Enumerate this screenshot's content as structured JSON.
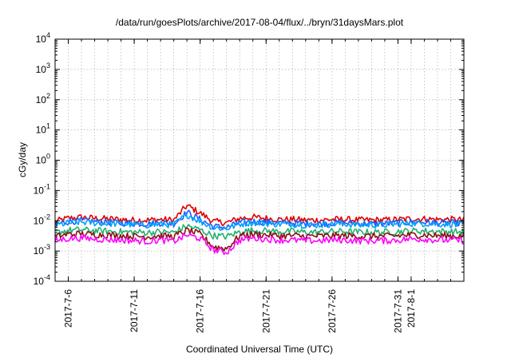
{
  "chart_data": {
    "type": "line",
    "title": "/data/run/goesPlots/archive/2017-08-04/flux/../bryn/31daysMars.plot",
    "xlabel": "Coordinated Universal Time (UTC)",
    "ylabel": "cGy/day",
    "yscale": "log",
    "ylim": [
      0.0001,
      10000
    ],
    "xlim": [
      "2017-07-05",
      "2017-08-05"
    ],
    "grid": true,
    "xticks": [
      "2017-7-6",
      "2017-7-11",
      "2017-7-16",
      "2017-7-21",
      "2017-7-26",
      "2017-7-31",
      "2017-8-1"
    ],
    "yticks": [
      {
        "value": 0.0001,
        "base": "10",
        "exp": "-4"
      },
      {
        "value": 0.001,
        "base": "10",
        "exp": "-3"
      },
      {
        "value": 0.01,
        "base": "10",
        "exp": "-2"
      },
      {
        "value": 0.1,
        "base": "10",
        "exp": "-1"
      },
      {
        "value": 1,
        "base": "10",
        "exp": "0"
      },
      {
        "value": 10,
        "base": "10",
        "exp": "1"
      },
      {
        "value": 100,
        "base": "10",
        "exp": "2"
      },
      {
        "value": 1000,
        "base": "10",
        "exp": "3"
      },
      {
        "value": 10000,
        "base": "10",
        "exp": "4"
      }
    ],
    "x": [
      "2017-07-05",
      "2017-07-06",
      "2017-07-07",
      "2017-07-08",
      "2017-07-09",
      "2017-07-10",
      "2017-07-11",
      "2017-07-12",
      "2017-07-13",
      "2017-07-14",
      "2017-07-15",
      "2017-07-16",
      "2017-07-17",
      "2017-07-18",
      "2017-07-19",
      "2017-07-20",
      "2017-07-21",
      "2017-07-22",
      "2017-07-23",
      "2017-07-24",
      "2017-07-25",
      "2017-07-26",
      "2017-07-27",
      "2017-07-28",
      "2017-07-29",
      "2017-07-30",
      "2017-07-31",
      "2017-08-01",
      "2017-08-02",
      "2017-08-03",
      "2017-08-04",
      "2017-08-05"
    ],
    "series": [
      {
        "color": "#e00000",
        "values": [
          0.0095,
          0.012,
          0.013,
          0.012,
          0.0115,
          0.011,
          0.0105,
          0.0105,
          0.011,
          0.0105,
          0.032,
          0.018,
          0.0095,
          0.0085,
          0.012,
          0.013,
          0.012,
          0.011,
          0.011,
          0.0105,
          0.0105,
          0.011,
          0.011,
          0.0105,
          0.0105,
          0.0105,
          0.011,
          0.0115,
          0.0115,
          0.011,
          0.011,
          0.0105
        ]
      },
      {
        "color": "#1e5cff",
        "values": [
          0.0075,
          0.0095,
          0.01,
          0.0095,
          0.009,
          0.0085,
          0.0082,
          0.008,
          0.0085,
          0.008,
          0.019,
          0.011,
          0.0065,
          0.006,
          0.0085,
          0.0095,
          0.009,
          0.0085,
          0.0085,
          0.008,
          0.008,
          0.0085,
          0.0085,
          0.008,
          0.008,
          0.008,
          0.0085,
          0.009,
          0.009,
          0.0085,
          0.0085,
          0.008
        ]
      },
      {
        "color": "#00a0ff",
        "values": [
          0.0068,
          0.0085,
          0.009,
          0.0085,
          0.0082,
          0.0078,
          0.0075,
          0.0073,
          0.0078,
          0.0073,
          0.016,
          0.0095,
          0.006,
          0.0055,
          0.0078,
          0.0087,
          0.0082,
          0.0078,
          0.0078,
          0.0073,
          0.0073,
          0.0078,
          0.0078,
          0.0073,
          0.0073,
          0.0073,
          0.0078,
          0.0082,
          0.0082,
          0.0078,
          0.0078,
          0.0073
        ]
      },
      {
        "color": "#20b070",
        "values": [
          0.004,
          0.0048,
          0.005,
          0.0047,
          0.0045,
          0.0043,
          0.0042,
          0.0041,
          0.0043,
          0.0041,
          0.0068,
          0.005,
          0.0032,
          0.003,
          0.0043,
          0.0048,
          0.0046,
          0.0044,
          0.0044,
          0.0042,
          0.0042,
          0.0044,
          0.0044,
          0.0042,
          0.0042,
          0.0042,
          0.0044,
          0.0046,
          0.0046,
          0.0044,
          0.0044,
          0.0042
        ]
      },
      {
        "color": "#8b1010",
        "values": [
          0.003,
          0.0036,
          0.0037,
          0.0035,
          0.0034,
          0.0032,
          0.0031,
          0.003,
          0.0032,
          0.003,
          0.0048,
          0.0036,
          0.0014,
          0.0012,
          0.0032,
          0.0036,
          0.0034,
          0.0032,
          0.0032,
          0.0031,
          0.0031,
          0.0032,
          0.0032,
          0.0031,
          0.0031,
          0.0031,
          0.0032,
          0.0034,
          0.0034,
          0.0032,
          0.0032,
          0.0031
        ]
      },
      {
        "color": "#ff00ff",
        "values": [
          0.0022,
          0.0026,
          0.0027,
          0.0025,
          0.0024,
          0.0023,
          0.0022,
          0.0021,
          0.0023,
          0.0021,
          0.0034,
          0.0026,
          0.0011,
          0.0009,
          0.0023,
          0.0027,
          0.0025,
          0.0023,
          0.0023,
          0.0022,
          0.0022,
          0.0023,
          0.0023,
          0.0022,
          0.0022,
          0.0022,
          0.0023,
          0.0025,
          0.0025,
          0.0023,
          0.0023,
          0.0022
        ]
      }
    ]
  }
}
